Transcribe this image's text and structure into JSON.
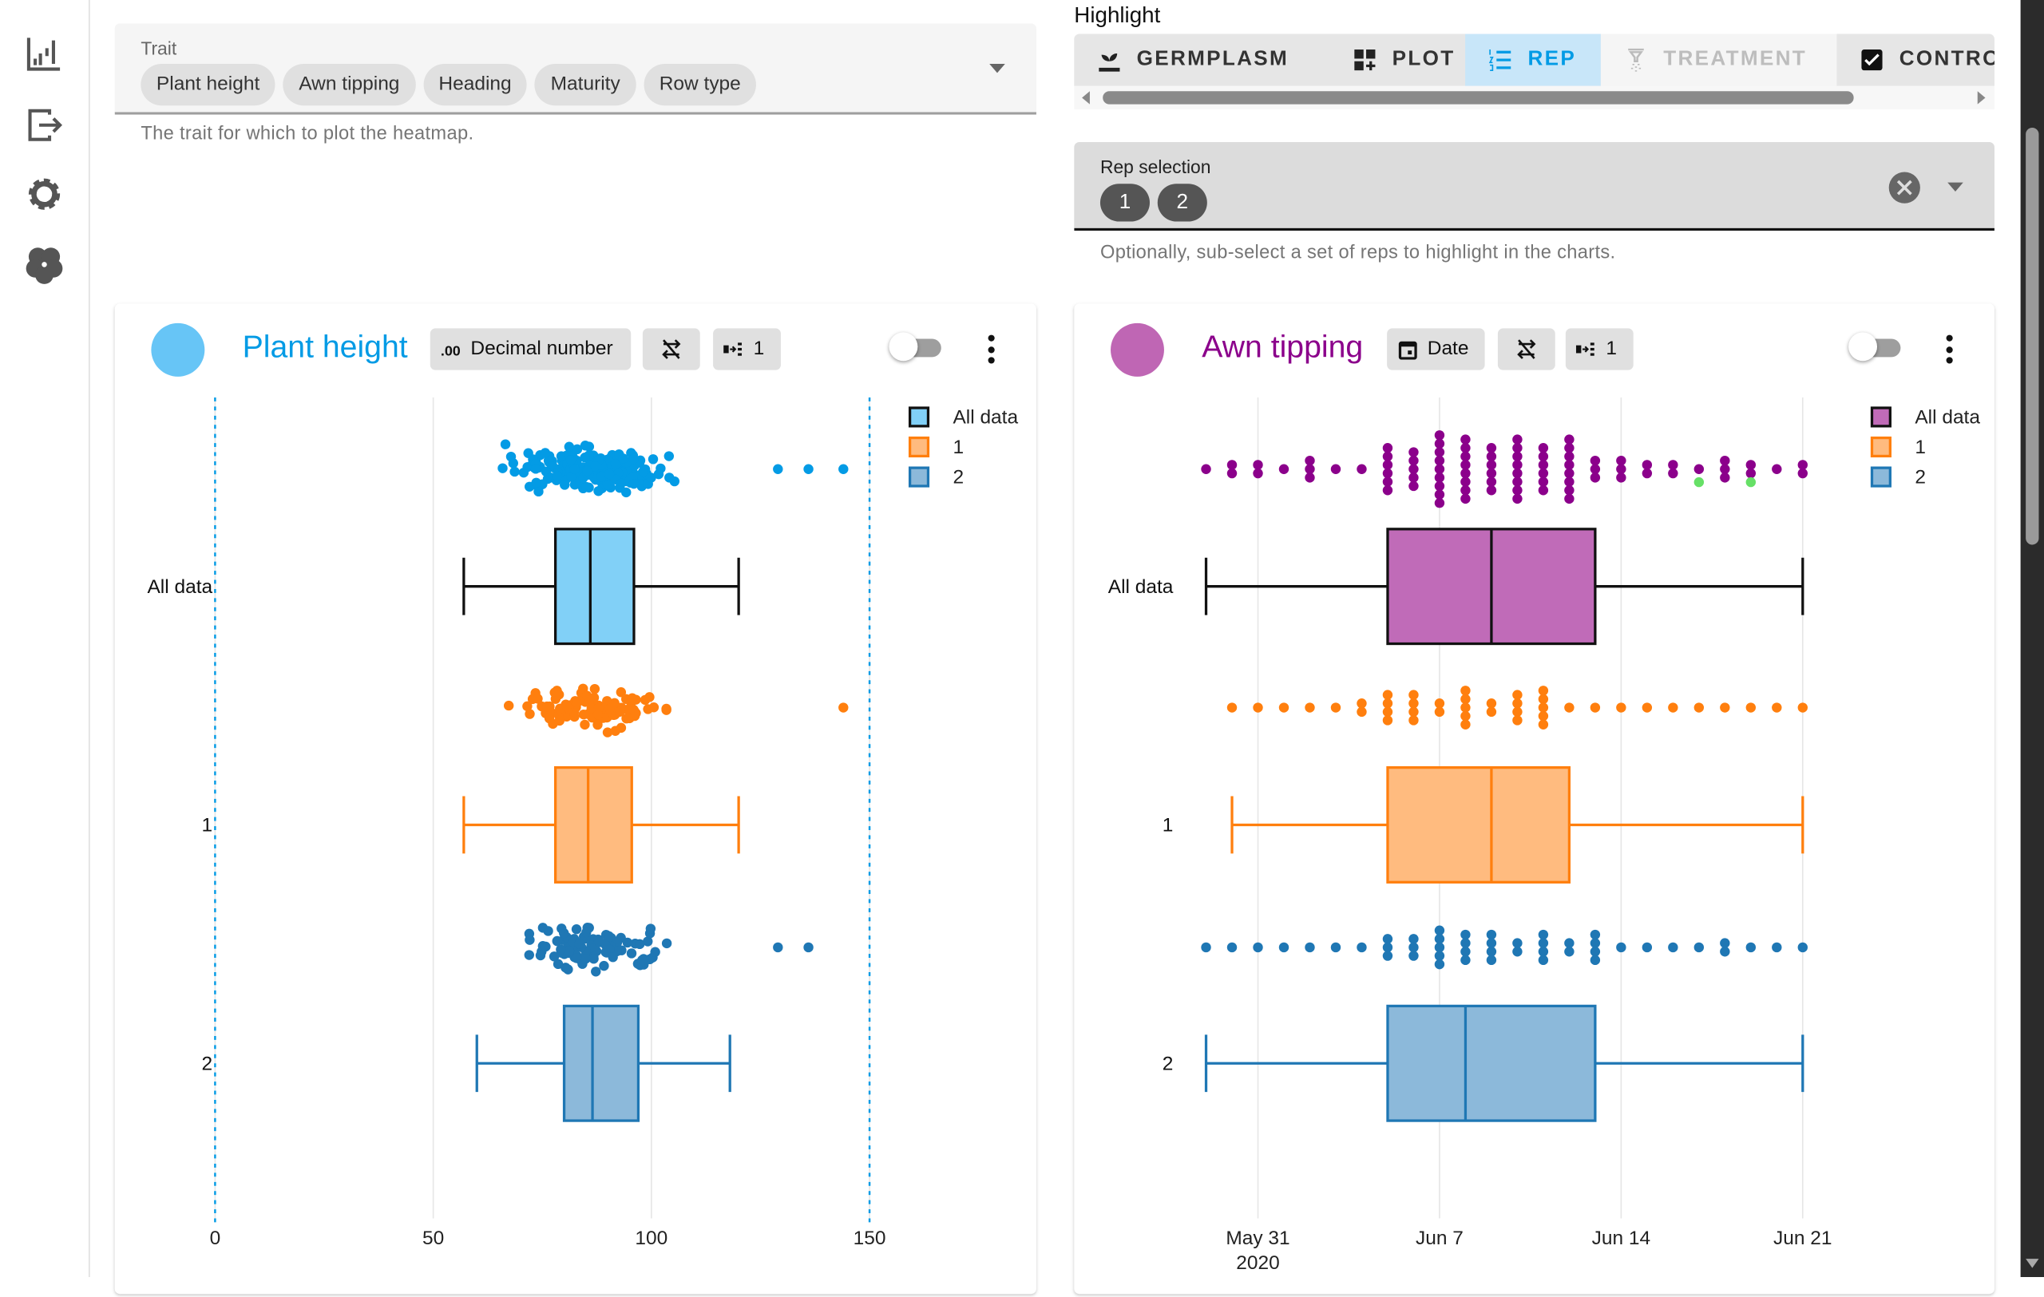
{
  "sidebar": {
    "items": [
      {
        "icon": "chart-icon"
      },
      {
        "icon": "export-icon"
      },
      {
        "icon": "gear-icon"
      },
      {
        "icon": "flower-icon"
      }
    ]
  },
  "trait": {
    "label": "Trait",
    "chips": [
      "Plant height",
      "Awn tipping",
      "Heading",
      "Maturity",
      "Row type"
    ],
    "hint": "The trait for which to plot the heatmap."
  },
  "highlight": {
    "title": "Highlight",
    "tabs": [
      {
        "label": "GERMPLASM",
        "icon": "sprout-icon",
        "state": "normal"
      },
      {
        "label": "PLOT",
        "icon": "grid-plus-icon",
        "state": "normal"
      },
      {
        "label": "REP",
        "icon": "numbered-list-icon",
        "state": "selected"
      },
      {
        "label": "TREATMENT",
        "icon": "sprinkler-icon",
        "state": "disabled"
      },
      {
        "label": "CONTROL",
        "icon": "checkbox-icon",
        "state": "normal"
      }
    ],
    "rep_selection": {
      "label": "Rep selection",
      "chips": [
        "1",
        "2"
      ],
      "hint": "Optionally, sub-select a set of reps to highlight in the charts."
    }
  },
  "colors": {
    "accent_blue": "#039be5",
    "tab_selected_bg": "#c8e6f9",
    "rep1": "#ff7f0e",
    "rep2": "#1f77b4",
    "plant_height": "#67c5f6",
    "awn_tipping": "#bf66b4",
    "awn_title": "#8b008b"
  },
  "cards": [
    {
      "title": "Plant height",
      "type_label": "Decimal number",
      "type_icon": "decimal-icon",
      "count": "1"
    },
    {
      "title": "Awn tipping",
      "type_label": "Date",
      "type_icon": "calendar-icon",
      "count": "1"
    }
  ],
  "chart_data": [
    {
      "type": "box",
      "orientation": "horizontal",
      "xlim": [
        0,
        150
      ],
      "xticks": [
        "0",
        "50",
        "100",
        "150"
      ],
      "dashed_limits": [
        0,
        150
      ],
      "legend": [
        "All data",
        "1",
        "2"
      ],
      "legend_placement": "top-right",
      "categories": [
        "All data",
        "1",
        "2"
      ],
      "series": [
        {
          "name": "All data",
          "min": 57,
          "q1": 78,
          "median": 86,
          "q3": 96,
          "max": 120,
          "outliers": [
            129,
            136,
            144
          ],
          "color": "#039be5",
          "fill": "#81d0f7"
        },
        {
          "name": "1",
          "min": 57,
          "q1": 78,
          "median": 85.5,
          "q3": 95.5,
          "max": 120,
          "outliers": [
            144
          ],
          "color": "#ff7f0e",
          "fill": "#ffbb7f"
        },
        {
          "name": "2",
          "min": 60,
          "q1": 80,
          "median": 86.5,
          "q3": 97,
          "max": 118,
          "outliers": [
            129,
            136
          ],
          "color": "#1f77b4",
          "fill": "#8cb9da"
        }
      ]
    },
    {
      "type": "box",
      "orientation": "horizontal",
      "xlim": [
        "2020-05-28",
        "2020-06-22"
      ],
      "xticks": [
        "May 31\n2020",
        "Jun 7",
        "Jun 14",
        "Jun 21"
      ],
      "legend": [
        "All data",
        "1",
        "2"
      ],
      "legend_placement": "top-right",
      "categories": [
        "All data",
        "1",
        "2"
      ],
      "series": [
        {
          "name": "All data",
          "min": "2020-05-29",
          "q1": "2020-06-05",
          "median": "2020-06-09",
          "q3": "2020-06-13",
          "max": "2020-06-21",
          "color": "#8b008b",
          "fill": "#c06bb8"
        },
        {
          "name": "1",
          "min": "2020-05-30",
          "q1": "2020-06-05",
          "median": "2020-06-09",
          "q3": "2020-06-12",
          "max": "2020-06-21",
          "color": "#ff7f0e",
          "fill": "#ffbb7f"
        },
        {
          "name": "2",
          "min": "2020-05-29",
          "q1": "2020-06-05",
          "median": "2020-06-08",
          "q3": "2020-06-13",
          "max": "2020-06-21",
          "color": "#1f77b4",
          "fill": "#8cb9da"
        }
      ]
    }
  ]
}
